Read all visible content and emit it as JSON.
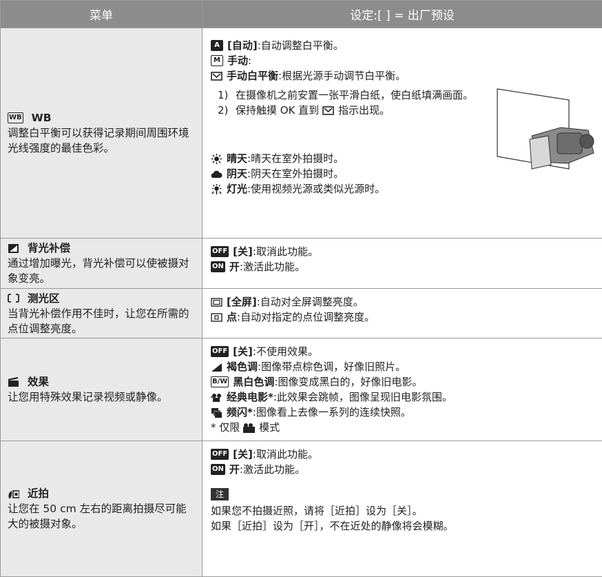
{
  "header": {
    "menu": "菜单",
    "settings": "设定:[ ] = 出厂预设"
  },
  "rows": [
    {
      "icon": "WB",
      "title": "WB",
      "desc": "调整白平衡可以获得记录期间周围环境光线强度的最佳色彩。",
      "settings": [
        {
          "icon": "A",
          "label": "[自动]",
          "text": ":自动调整白平衡。"
        },
        {
          "icon": "M",
          "label": "手动",
          "text": ":"
        },
        {
          "label": "手动白平衡",
          "text": ":根据光源手动调节白平衡。"
        }
      ],
      "steps": [
        {
          "num": "1)",
          "text": "在摄像机之前安置一张平滑白纸，使白纸填满画面。"
        },
        {
          "num": "2)",
          "before": "保持触摸 OK 直到",
          "after": "指示出现。"
        }
      ],
      "extra": [
        {
          "label": "晴天",
          "text": ":晴天在室外拍摄时。"
        },
        {
          "label": "阴天",
          "text": ":阴天在室外拍摄时。"
        },
        {
          "label": "灯光",
          "text": ":使用视频光源或类似光源时。"
        }
      ]
    },
    {
      "title": "背光补偿",
      "desc": "通过增加曝光，背光补偿可以使被摄对象变亮。",
      "settings": [
        {
          "icon": "OFF",
          "label": "[关]",
          "text": ":取消此功能。"
        },
        {
          "icon": "ON",
          "label": "开",
          "text": ":激活此功能。"
        }
      ]
    },
    {
      "title": "测光区",
      "desc": "当背光补偿作用不佳时，让您在所需的点位调整亮度。",
      "settings": [
        {
          "label": "[全屏]",
          "text": ":自动对全屏调整亮度。"
        },
        {
          "label": "点",
          "text": ":自动对指定的点位调整亮度。"
        }
      ]
    },
    {
      "title": "效果",
      "desc": "让您用特殊效果记录视频或静像。",
      "settings": [
        {
          "icon": "OFF",
          "label": "[关]",
          "text": ":不使用效果。"
        },
        {
          "label": "褐色调",
          "text": ":图像带点棕色调，好像旧照片。"
        },
        {
          "icon": "B/W",
          "label": "黑白色调",
          "text": ":图像变成黑白的，好像旧电影。"
        },
        {
          "label": "经典电影*",
          "text": ":此效果会跳帧，图像呈现旧电影氛围。"
        },
        {
          "label": "频闪*",
          "text": ":图像看上去像一系列的连续快照。"
        }
      ],
      "footnote": {
        "before": "* 仅限",
        "after": "模式"
      }
    },
    {
      "title": "近拍",
      "desc": "让您在 50 cm 左右的距离拍摄尽可能大的被摄对象。",
      "settings": [
        {
          "icon": "OFF",
          "label": "[关]",
          "text": ":取消此功能。"
        },
        {
          "icon": "ON",
          "label": "开",
          "text": ":激活此功能。"
        }
      ],
      "note": {
        "label": "注",
        "lines": [
          "如果您不拍摄近照，请将［近拍］设为［关］。",
          "如果［近拍］设为［开］，不在近处的静像将会模糊。"
        ]
      }
    }
  ]
}
